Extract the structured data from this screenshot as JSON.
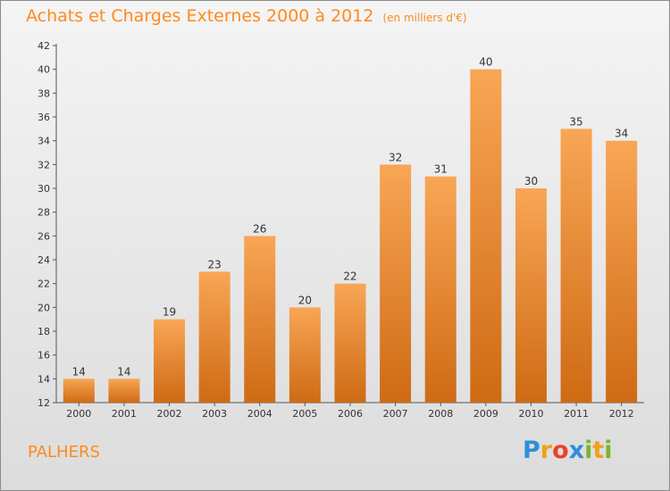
{
  "title": "Achats et Charges Externes 2000 à 2012",
  "subtitle": "(en milliers d'€)",
  "commune": "PALHERS",
  "logo": {
    "letters": [
      "P",
      "r",
      "o",
      "x",
      "i",
      "t",
      "i"
    ],
    "colors": [
      "#2f8fd8",
      "#f0a020",
      "#e8432b",
      "#2f8fd8",
      "#7ab52d",
      "#f0a020",
      "#7ab52d"
    ]
  },
  "colors": {
    "accent": "#ff8a1e",
    "bar_top": "#f8a655",
    "bar_bottom": "#cf6a14"
  },
  "chart_data": {
    "type": "bar",
    "categories": [
      "2000",
      "2001",
      "2002",
      "2003",
      "2004",
      "2005",
      "2006",
      "2007",
      "2008",
      "2009",
      "2010",
      "2011",
      "2012"
    ],
    "values": [
      14,
      14,
      19,
      23,
      26,
      20,
      22,
      32,
      31,
      40,
      30,
      35,
      34
    ],
    "ylim": [
      12,
      42
    ],
    "yticks": [
      12,
      14,
      16,
      18,
      20,
      22,
      24,
      26,
      28,
      30,
      32,
      34,
      36,
      38,
      40,
      42
    ],
    "grid": false
  }
}
